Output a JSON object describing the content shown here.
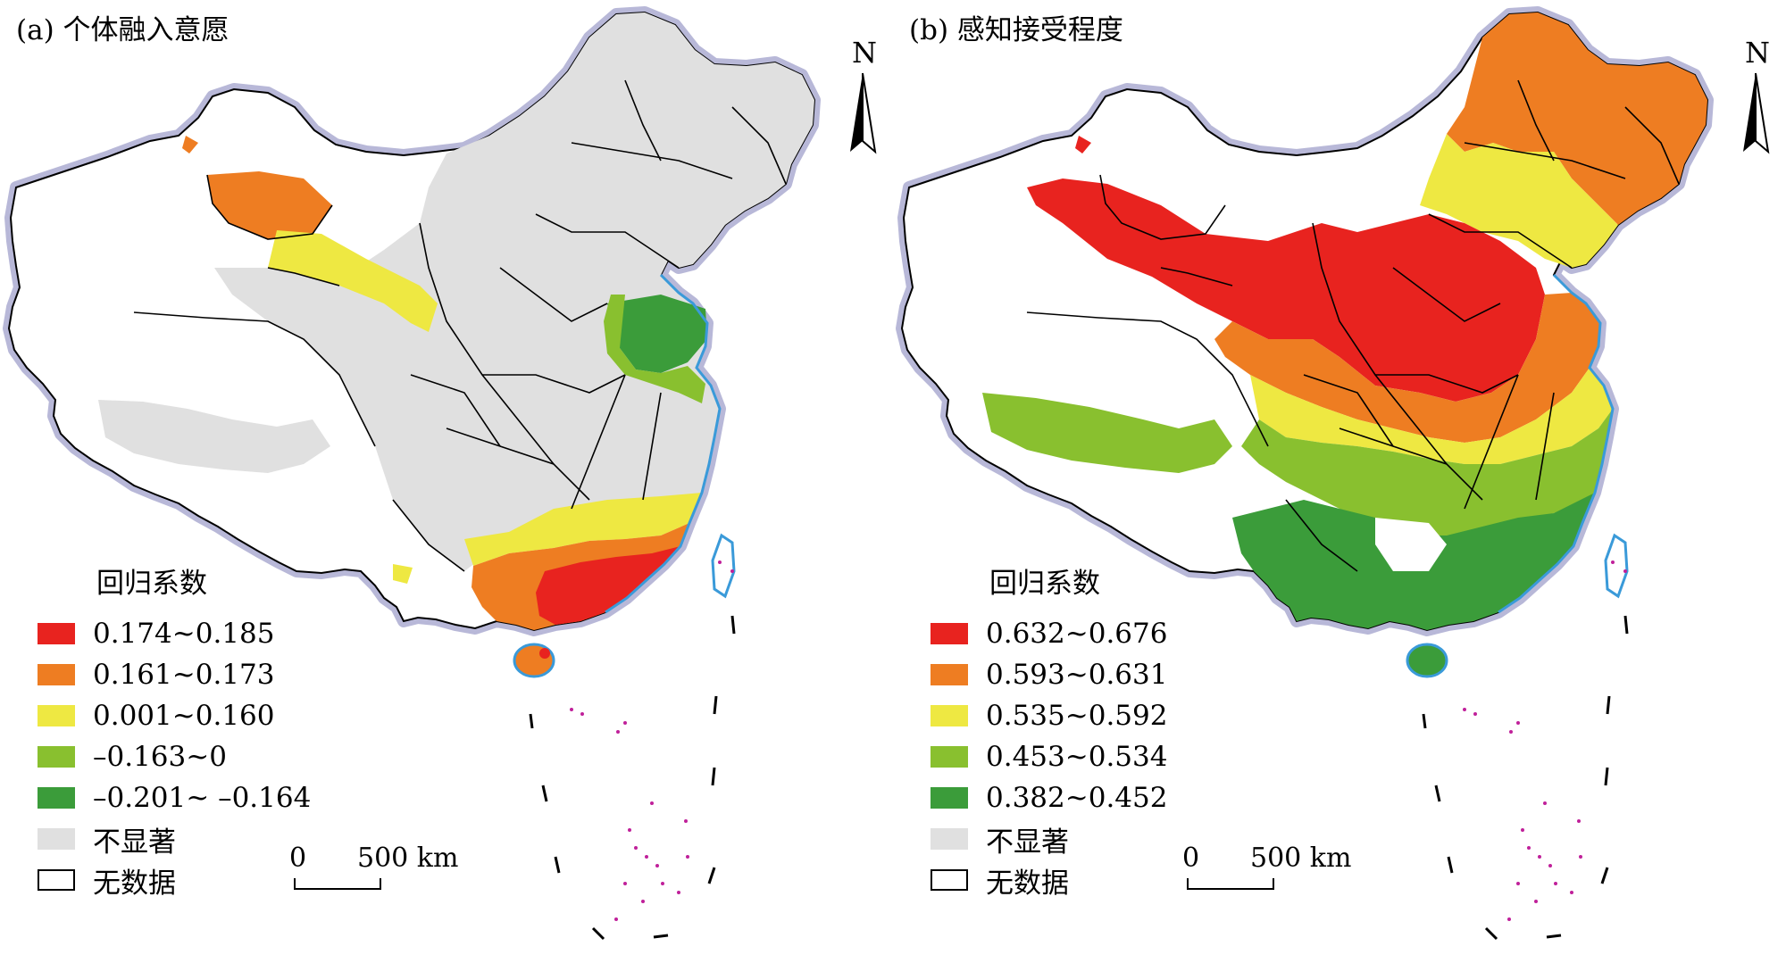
{
  "colors": {
    "sea_fringe": "#b8b8d8",
    "coast_blue": "#3a9ad9",
    "boundary": "#000000",
    "island_dots": "#c0209a"
  },
  "panels": [
    {
      "title": "(a) 个体融入意愿",
      "legend": {
        "title": "回归系数",
        "items": [
          {
            "label": "0.174~0.185",
            "color": "#e8231f"
          },
          {
            "label": "0.161~0.173",
            "color": "#ee7d22"
          },
          {
            "label": "0.001~0.160",
            "color": "#eee842"
          },
          {
            "label": "–0.163~0",
            "color": "#89c02f"
          },
          {
            "label": "–0.201~ –0.164",
            "color": "#3b9c3a"
          },
          {
            "label": "不显著",
            "color": "#e0e0e0"
          },
          {
            "label": "无数据",
            "color": "#ffffff"
          }
        ]
      },
      "scale_bar": {
        "zero": "0",
        "distance": "500 km"
      },
      "north_label": "N"
    },
    {
      "title": "(b) 感知接受程度",
      "legend": {
        "title": "回归系数",
        "items": [
          {
            "label": "0.632~0.676",
            "color": "#e8231f"
          },
          {
            "label": "0.593~0.631",
            "color": "#ee7d22"
          },
          {
            "label": "0.535~0.592",
            "color": "#eee842"
          },
          {
            "label": "0.453~0.534",
            "color": "#89c02f"
          },
          {
            "label": "0.382~0.452",
            "color": "#3b9c3a"
          },
          {
            "label": "不显著",
            "color": "#e0e0e0"
          },
          {
            "label": "无数据",
            "color": "#ffffff"
          }
        ]
      },
      "scale_bar": {
        "zero": "0",
        "distance": "500 km"
      },
      "north_label": "N"
    }
  ]
}
